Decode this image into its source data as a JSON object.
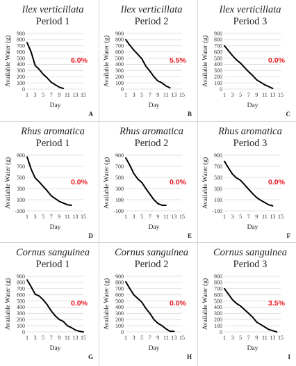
{
  "chart_data": [
    {
      "id": "A",
      "type": "line",
      "species": "Ilex verticillata",
      "period": "Period 1",
      "xlabel": "Day",
      "ylabel": "Available Water (g)",
      "annotation": "6.0%",
      "panel_label": "A",
      "ylim": [
        0,
        900
      ],
      "yticks": [
        0,
        100,
        200,
        300,
        400,
        500,
        600,
        700,
        800,
        900
      ],
      "xticks": [
        1,
        3,
        5,
        7,
        9,
        11,
        13,
        15
      ],
      "xlim": [
        1,
        15
      ],
      "series": [
        {
          "values": [
            [
              1,
              750
            ],
            [
              2,
              600
            ],
            [
              3,
              380
            ],
            [
              4,
              320
            ],
            [
              5,
              240
            ],
            [
              6,
              180
            ],
            [
              7,
              110
            ],
            [
              8,
              70
            ],
            [
              9,
              30
            ],
            [
              10,
              10
            ]
          ]
        }
      ]
    },
    {
      "id": "B",
      "type": "line",
      "species": "Ilex verticillata",
      "period": "Period 2",
      "xlabel": "Day",
      "ylabel": "Available Water (g)",
      "annotation": "5.5%",
      "panel_label": "B",
      "ylim": [
        0,
        900
      ],
      "yticks": [
        0,
        100,
        200,
        300,
        400,
        500,
        600,
        700,
        800,
        900
      ],
      "xticks": [
        1,
        3,
        5,
        7,
        9,
        11,
        13,
        15
      ],
      "xlim": [
        1,
        15
      ],
      "series": [
        {
          "values": [
            [
              1,
              800
            ],
            [
              2,
              710
            ],
            [
              3,
              630
            ],
            [
              4,
              560
            ],
            [
              5,
              490
            ],
            [
              6,
              370
            ],
            [
              7,
              290
            ],
            [
              8,
              200
            ],
            [
              9,
              130
            ],
            [
              10,
              100
            ],
            [
              11,
              50
            ],
            [
              12,
              20
            ]
          ]
        }
      ]
    },
    {
      "id": "C",
      "type": "line",
      "species": "Ilex verticillata",
      "period": "Period 3",
      "xlabel": "Day",
      "ylabel": "Available Water (g)",
      "annotation": "0.0%",
      "panel_label": "C",
      "ylim": [
        0,
        900
      ],
      "yticks": [
        0,
        100,
        200,
        300,
        400,
        500,
        600,
        700,
        800,
        900
      ],
      "xticks": [
        1,
        3,
        5,
        7,
        9,
        11,
        13,
        15
      ],
      "xlim": [
        1,
        15
      ],
      "series": [
        {
          "values": [
            [
              1,
              700
            ],
            [
              2,
              620
            ],
            [
              3,
              540
            ],
            [
              4,
              470
            ],
            [
              5,
              420
            ],
            [
              6,
              350
            ],
            [
              7,
              280
            ],
            [
              8,
              220
            ],
            [
              9,
              150
            ],
            [
              10,
              110
            ],
            [
              11,
              70
            ],
            [
              12,
              40
            ],
            [
              13,
              10
            ]
          ]
        }
      ]
    },
    {
      "id": "D",
      "type": "line",
      "species": "Rhus aromatica",
      "period": "Period 1",
      "xlabel": "Day",
      "ylabel": "Available Water (g)",
      "annotation": "0.0%",
      "panel_label": "D",
      "ylim": [
        -100,
        900
      ],
      "yticks": [
        -100,
        100,
        300,
        500,
        700,
        900
      ],
      "xticks": [
        1,
        3,
        5,
        7,
        9,
        11,
        13,
        15
      ],
      "xlim": [
        1,
        15
      ],
      "series": [
        {
          "values": [
            [
              1,
              870
            ],
            [
              2,
              650
            ],
            [
              3,
              490
            ],
            [
              4,
              420
            ],
            [
              5,
              340
            ],
            [
              6,
              260
            ],
            [
              7,
              170
            ],
            [
              8,
              120
            ],
            [
              9,
              70
            ],
            [
              10,
              40
            ],
            [
              11,
              10
            ],
            [
              12,
              0
            ]
          ]
        }
      ]
    },
    {
      "id": "E",
      "type": "line",
      "species": "Rhus aromatica",
      "period": "Period 2",
      "xlabel": "Day",
      "ylabel": "Available Water (g)",
      "annotation": "0.0%",
      "panel_label": "E",
      "ylim": [
        -100,
        900
      ],
      "yticks": [
        -100,
        100,
        300,
        500,
        700,
        900
      ],
      "xticks": [
        1,
        3,
        5,
        7,
        9,
        11,
        13,
        15
      ],
      "xlim": [
        1,
        15
      ],
      "series": [
        {
          "values": [
            [
              1,
              850
            ],
            [
              2,
              720
            ],
            [
              3,
              570
            ],
            [
              4,
              470
            ],
            [
              5,
              410
            ],
            [
              6,
              300
            ],
            [
              7,
              200
            ],
            [
              8,
              100
            ],
            [
              9,
              30
            ],
            [
              10,
              0
            ],
            [
              11,
              0
            ]
          ]
        }
      ]
    },
    {
      "id": "F",
      "type": "line",
      "species": "Rhus aromatica",
      "period": "Period 3",
      "xlabel": "Day",
      "ylabel": "Available Water (g)",
      "annotation": "0.0%",
      "panel_label": "F",
      "ylim": [
        -100,
        900
      ],
      "yticks": [
        -100,
        100,
        300,
        500,
        700,
        900
      ],
      "xticks": [
        1,
        3,
        5,
        7,
        9,
        11,
        13,
        15
      ],
      "xlim": [
        1,
        15
      ],
      "series": [
        {
          "values": [
            [
              1,
              790
            ],
            [
              2,
              670
            ],
            [
              3,
              560
            ],
            [
              4,
              490
            ],
            [
              5,
              450
            ],
            [
              6,
              370
            ],
            [
              7,
              290
            ],
            [
              8,
              210
            ],
            [
              9,
              140
            ],
            [
              10,
              90
            ],
            [
              11,
              50
            ],
            [
              12,
              10
            ],
            [
              13,
              -10
            ]
          ]
        }
      ]
    },
    {
      "id": "G",
      "type": "line",
      "species": "Cornus sanguinea",
      "period": "Period 1",
      "xlabel": "Day",
      "ylabel": "Available Water (g)",
      "annotation": "0.0%",
      "panel_label": "G",
      "ylim": [
        0,
        900
      ],
      "yticks": [
        0,
        100,
        200,
        300,
        400,
        500,
        600,
        700,
        800,
        900
      ],
      "xticks": [
        1,
        3,
        5,
        7,
        9,
        11,
        13,
        15
      ],
      "xlim": [
        1,
        15
      ],
      "series": [
        {
          "values": [
            [
              1,
              840
            ],
            [
              2,
              730
            ],
            [
              3,
              610
            ],
            [
              4,
              580
            ],
            [
              5,
              520
            ],
            [
              6,
              440
            ],
            [
              7,
              340
            ],
            [
              8,
              260
            ],
            [
              9,
              200
            ],
            [
              10,
              170
            ],
            [
              11,
              100
            ],
            [
              12,
              70
            ],
            [
              13,
              30
            ],
            [
              14,
              10
            ],
            [
              15,
              0
            ]
          ]
        }
      ]
    },
    {
      "id": "H",
      "type": "line",
      "species": "Cornus sanguinea",
      "period": "Period 2",
      "xlabel": "Day",
      "ylabel": "Available Water (g)",
      "annotation": "0.0%",
      "panel_label": "H",
      "ylim": [
        0,
        900
      ],
      "yticks": [
        0,
        100,
        200,
        300,
        400,
        500,
        600,
        700,
        800,
        900
      ],
      "xticks": [
        1,
        3,
        5,
        7,
        9,
        11,
        13,
        15
      ],
      "xlim": [
        1,
        15
      ],
      "series": [
        {
          "values": [
            [
              1,
              810
            ],
            [
              2,
              700
            ],
            [
              3,
              600
            ],
            [
              4,
              540
            ],
            [
              5,
              480
            ],
            [
              6,
              380
            ],
            [
              7,
              300
            ],
            [
              8,
              200
            ],
            [
              9,
              140
            ],
            [
              10,
              100
            ],
            [
              11,
              50
            ],
            [
              12,
              10
            ],
            [
              13,
              10
            ]
          ]
        }
      ]
    },
    {
      "id": "I",
      "type": "line",
      "species": "Cornus sanguinea",
      "period": "Period 3",
      "xlabel": "Day",
      "ylabel": "Available Water (g)",
      "annotation": "3.5%",
      "panel_label": "I",
      "ylim": [
        0,
        900
      ],
      "yticks": [
        0,
        100,
        200,
        300,
        400,
        500,
        600,
        700,
        800,
        900
      ],
      "xticks": [
        1,
        3,
        5,
        7,
        9,
        11,
        13,
        15
      ],
      "xlim": [
        1,
        15
      ],
      "series": [
        {
          "values": [
            [
              1,
              700
            ],
            [
              2,
              610
            ],
            [
              3,
              520
            ],
            [
              4,
              460
            ],
            [
              5,
              420
            ],
            [
              6,
              360
            ],
            [
              7,
              300
            ],
            [
              8,
              240
            ],
            [
              9,
              160
            ],
            [
              10,
              120
            ],
            [
              11,
              80
            ],
            [
              12,
              40
            ],
            [
              13,
              20
            ],
            [
              14,
              0
            ]
          ]
        }
      ]
    }
  ]
}
